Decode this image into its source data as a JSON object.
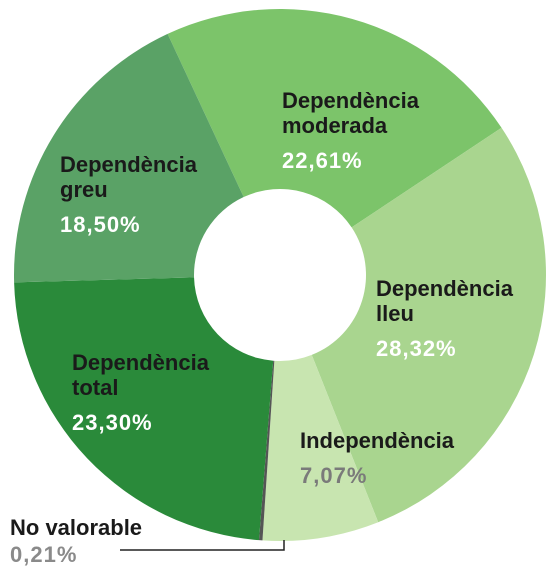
{
  "chart_data": {
    "type": "donut",
    "categories": [
      "Dependència moderada",
      "Dependència lleu",
      "Independència",
      "No valorable",
      "Dependència total",
      "Dependència greu"
    ],
    "values": [
      22.61,
      28.32,
      7.07,
      0.21,
      23.3,
      18.5
    ],
    "value_labels": [
      "22,61%",
      "28,32%",
      "7,07%",
      "0,21%",
      "23,30%",
      "18,50%"
    ],
    "colors": [
      "#7cc46a",
      "#a9d58f",
      "#c8e5b0",
      "#555555",
      "#2a8a3a",
      "#5aa266"
    ]
  }
}
